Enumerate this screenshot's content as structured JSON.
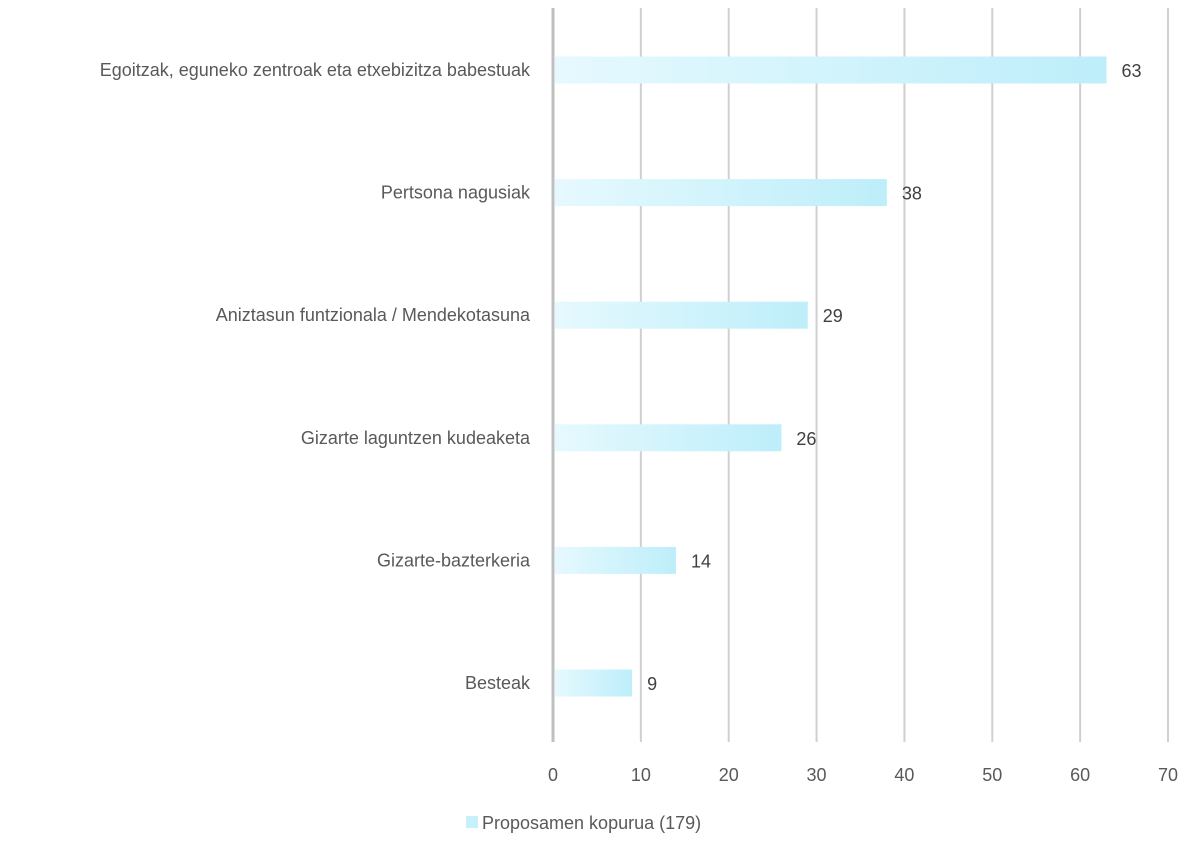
{
  "chart_data": {
    "type": "bar",
    "orientation": "horizontal",
    "categories": [
      "Egoitzak, eguneko zentroak eta etxebizitza babestuak",
      "Pertsona nagusiak",
      "Aniztasun funtzionala / Mendekotasuna",
      "Gizarte laguntzen kudeaketa",
      "Gizarte-bazterkeria",
      "Besteak"
    ],
    "series": [
      {
        "name": "Proposamen kopurua (179)",
        "values": [
          63,
          38,
          29,
          26,
          14,
          9
        ],
        "color": "#c6f1fb"
      }
    ],
    "xlim": [
      0,
      70
    ],
    "xticks": [
      "0",
      "10",
      "20",
      "30",
      "40",
      "50",
      "60",
      "70"
    ],
    "grid": "vertical",
    "legend": "bottom-center",
    "data_labels": true,
    "colors": {
      "bar_light": "#e6f9fe",
      "bar_dark": "#bdeefa",
      "grid": "#d0d0d0",
      "axis": "#bfbfbf",
      "text": "#595959"
    }
  }
}
